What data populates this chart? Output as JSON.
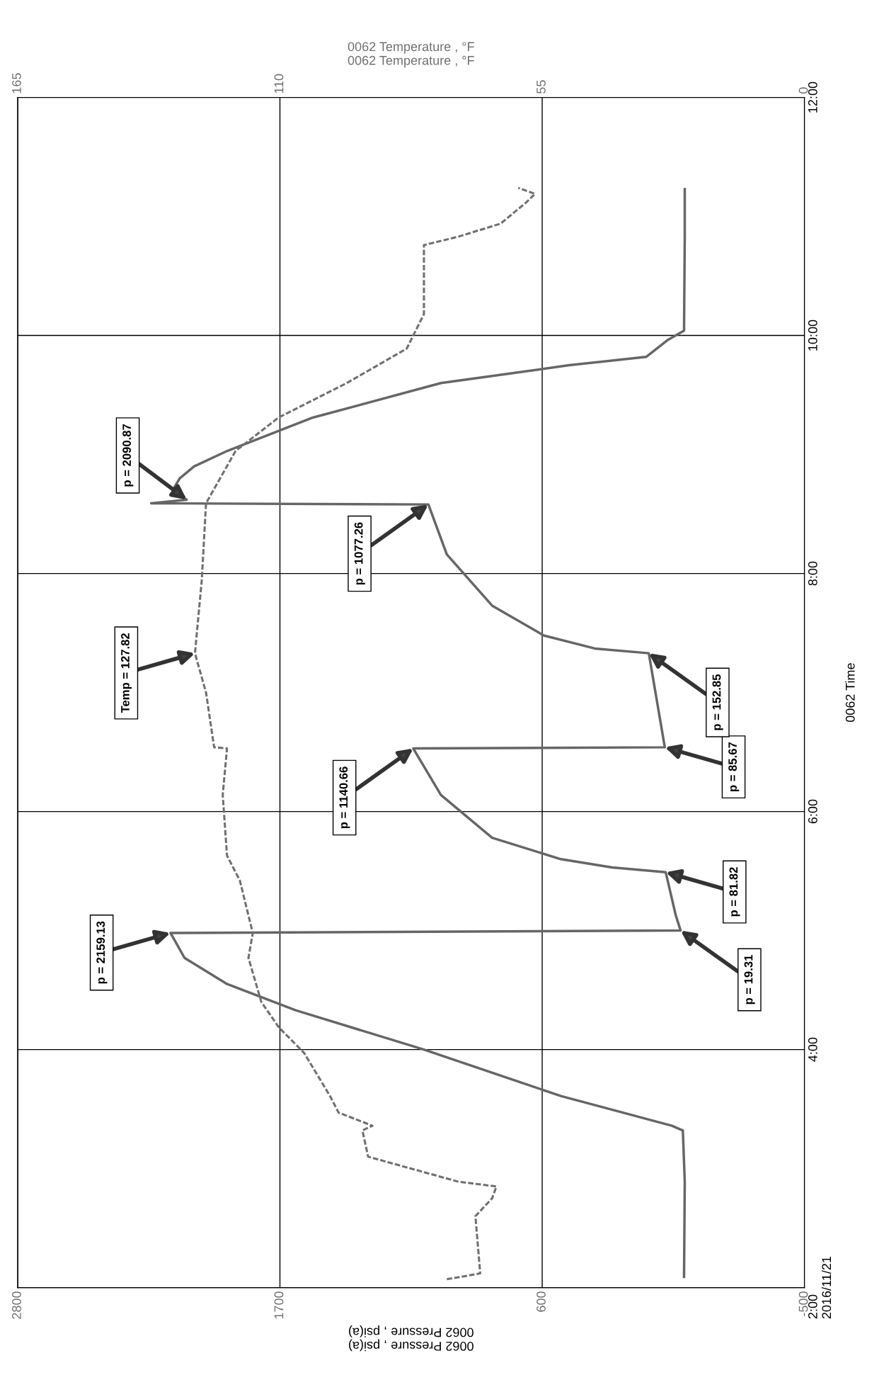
{
  "chart_data": {
    "type": "line",
    "ylabel": "0062 Time",
    "xlabel": "0062 Pressure , psi(a)\n0062 Pressure , psi(a)",
    "x2label": "0062 Temperature , °F\n0062 Temperature , °F",
    "ylim": [
      2,
      12
    ],
    "yticks": [
      {
        "value": 2,
        "label": "2:00\n2016/11/21"
      },
      {
        "value": 4,
        "label": "4:00"
      },
      {
        "value": 6,
        "label": "6:00"
      },
      {
        "value": 8,
        "label": "8:00"
      },
      {
        "value": 10,
        "label": "10:00"
      },
      {
        "value": 12,
        "label": "12:00"
      }
    ],
    "xlim": [
      2800,
      -500
    ],
    "xticks": [
      -500,
      600,
      1700,
      2800
    ],
    "x2lim": [
      165,
      0
    ],
    "x2ticks": [
      0,
      55,
      110,
      165
    ],
    "grid": true,
    "series": [
      {
        "color": "#666666",
        "line_style": "solid",
        "x": [
          5,
          2,
          10,
          56,
          522,
          1096,
          1634,
          1921,
          2100,
          2159.13,
          19.31,
          40,
          81.82,
          307,
          522,
          810,
          1025,
          1140.66,
          85.67,
          152.85,
          380,
          594,
          810,
          1000,
          1077.26,
          2240,
          2090.87,
          2150,
          2120,
          2060,
          1921,
          1562,
          1025,
          487,
          164,
          75,
          5,
          2,
          2
        ],
        "values": [
          2.09,
          2.89,
          3.32,
          3.36,
          3.61,
          4.0,
          4.33,
          4.55,
          4.77,
          4.98,
          5.0,
          5.13,
          5.49,
          5.53,
          5.6,
          5.78,
          6.14,
          6.53,
          6.54,
          7.33,
          7.37,
          7.48,
          7.73,
          8.16,
          8.58,
          8.59,
          8.62,
          8.7,
          8.8,
          8.9,
          9.03,
          9.31,
          9.6,
          9.75,
          9.82,
          9.96,
          10.04,
          10.83,
          11.23
        ]
      },
      {
        "color": "#707070",
        "line_style": "dashed",
        "axis": "x2",
        "x": [
          75,
          72,
          68,
          69,
          65.5,
          64.6,
          72.6,
          91.5,
          92.7,
          90.6,
          97.7,
          99.5,
          104.9,
          110.3,
          113.9,
          116.6,
          115.7,
          118.4,
          121.1,
          122,
          121.1,
          123.8,
          125.5,
          127.82,
          126.4,
          125.5,
          119.3,
          110.3,
          96,
          83.4,
          79.8,
          79.8,
          72.6,
          63.7,
          58.3,
          56.5,
          60
        ],
        "values": [
          2.07,
          2.09,
          2.12,
          2.6,
          2.75,
          2.85,
          2.89,
          3.1,
          3.32,
          3.36,
          3.47,
          3.61,
          3.97,
          4.19,
          4.4,
          4.77,
          4.98,
          5.42,
          5.63,
          6.14,
          6.53,
          6.54,
          7.0,
          7.33,
          7.94,
          8.59,
          9.03,
          9.31,
          9.6,
          9.89,
          10.18,
          10.76,
          10.83,
          10.94,
          11.12,
          11.19,
          11.24
        ]
      }
    ],
    "annotations": [
      {
        "text": "p = 2159.13",
        "x": 2159.13,
        "y": 4.98
      },
      {
        "text": "p = 19.31",
        "x": 19.31,
        "y": 5.0
      },
      {
        "text": "p = 81.82",
        "x": 81.82,
        "y": 5.49
      },
      {
        "text": "p = 1140.66",
        "x": 1140.66,
        "y": 6.53
      },
      {
        "text": "p = 85.67",
        "x": 85.67,
        "y": 6.54
      },
      {
        "text": "p = 152.85",
        "x": 152.85,
        "y": 7.33
      },
      {
        "text": "Temp = 127.82",
        "x": 2056,
        "y": 7.33
      },
      {
        "text": "p = 1077.26",
        "x": 1077.26,
        "y": 8.58
      },
      {
        "text": "p = 2090.87",
        "x": 2090.87,
        "y": 8.62
      }
    ]
  }
}
